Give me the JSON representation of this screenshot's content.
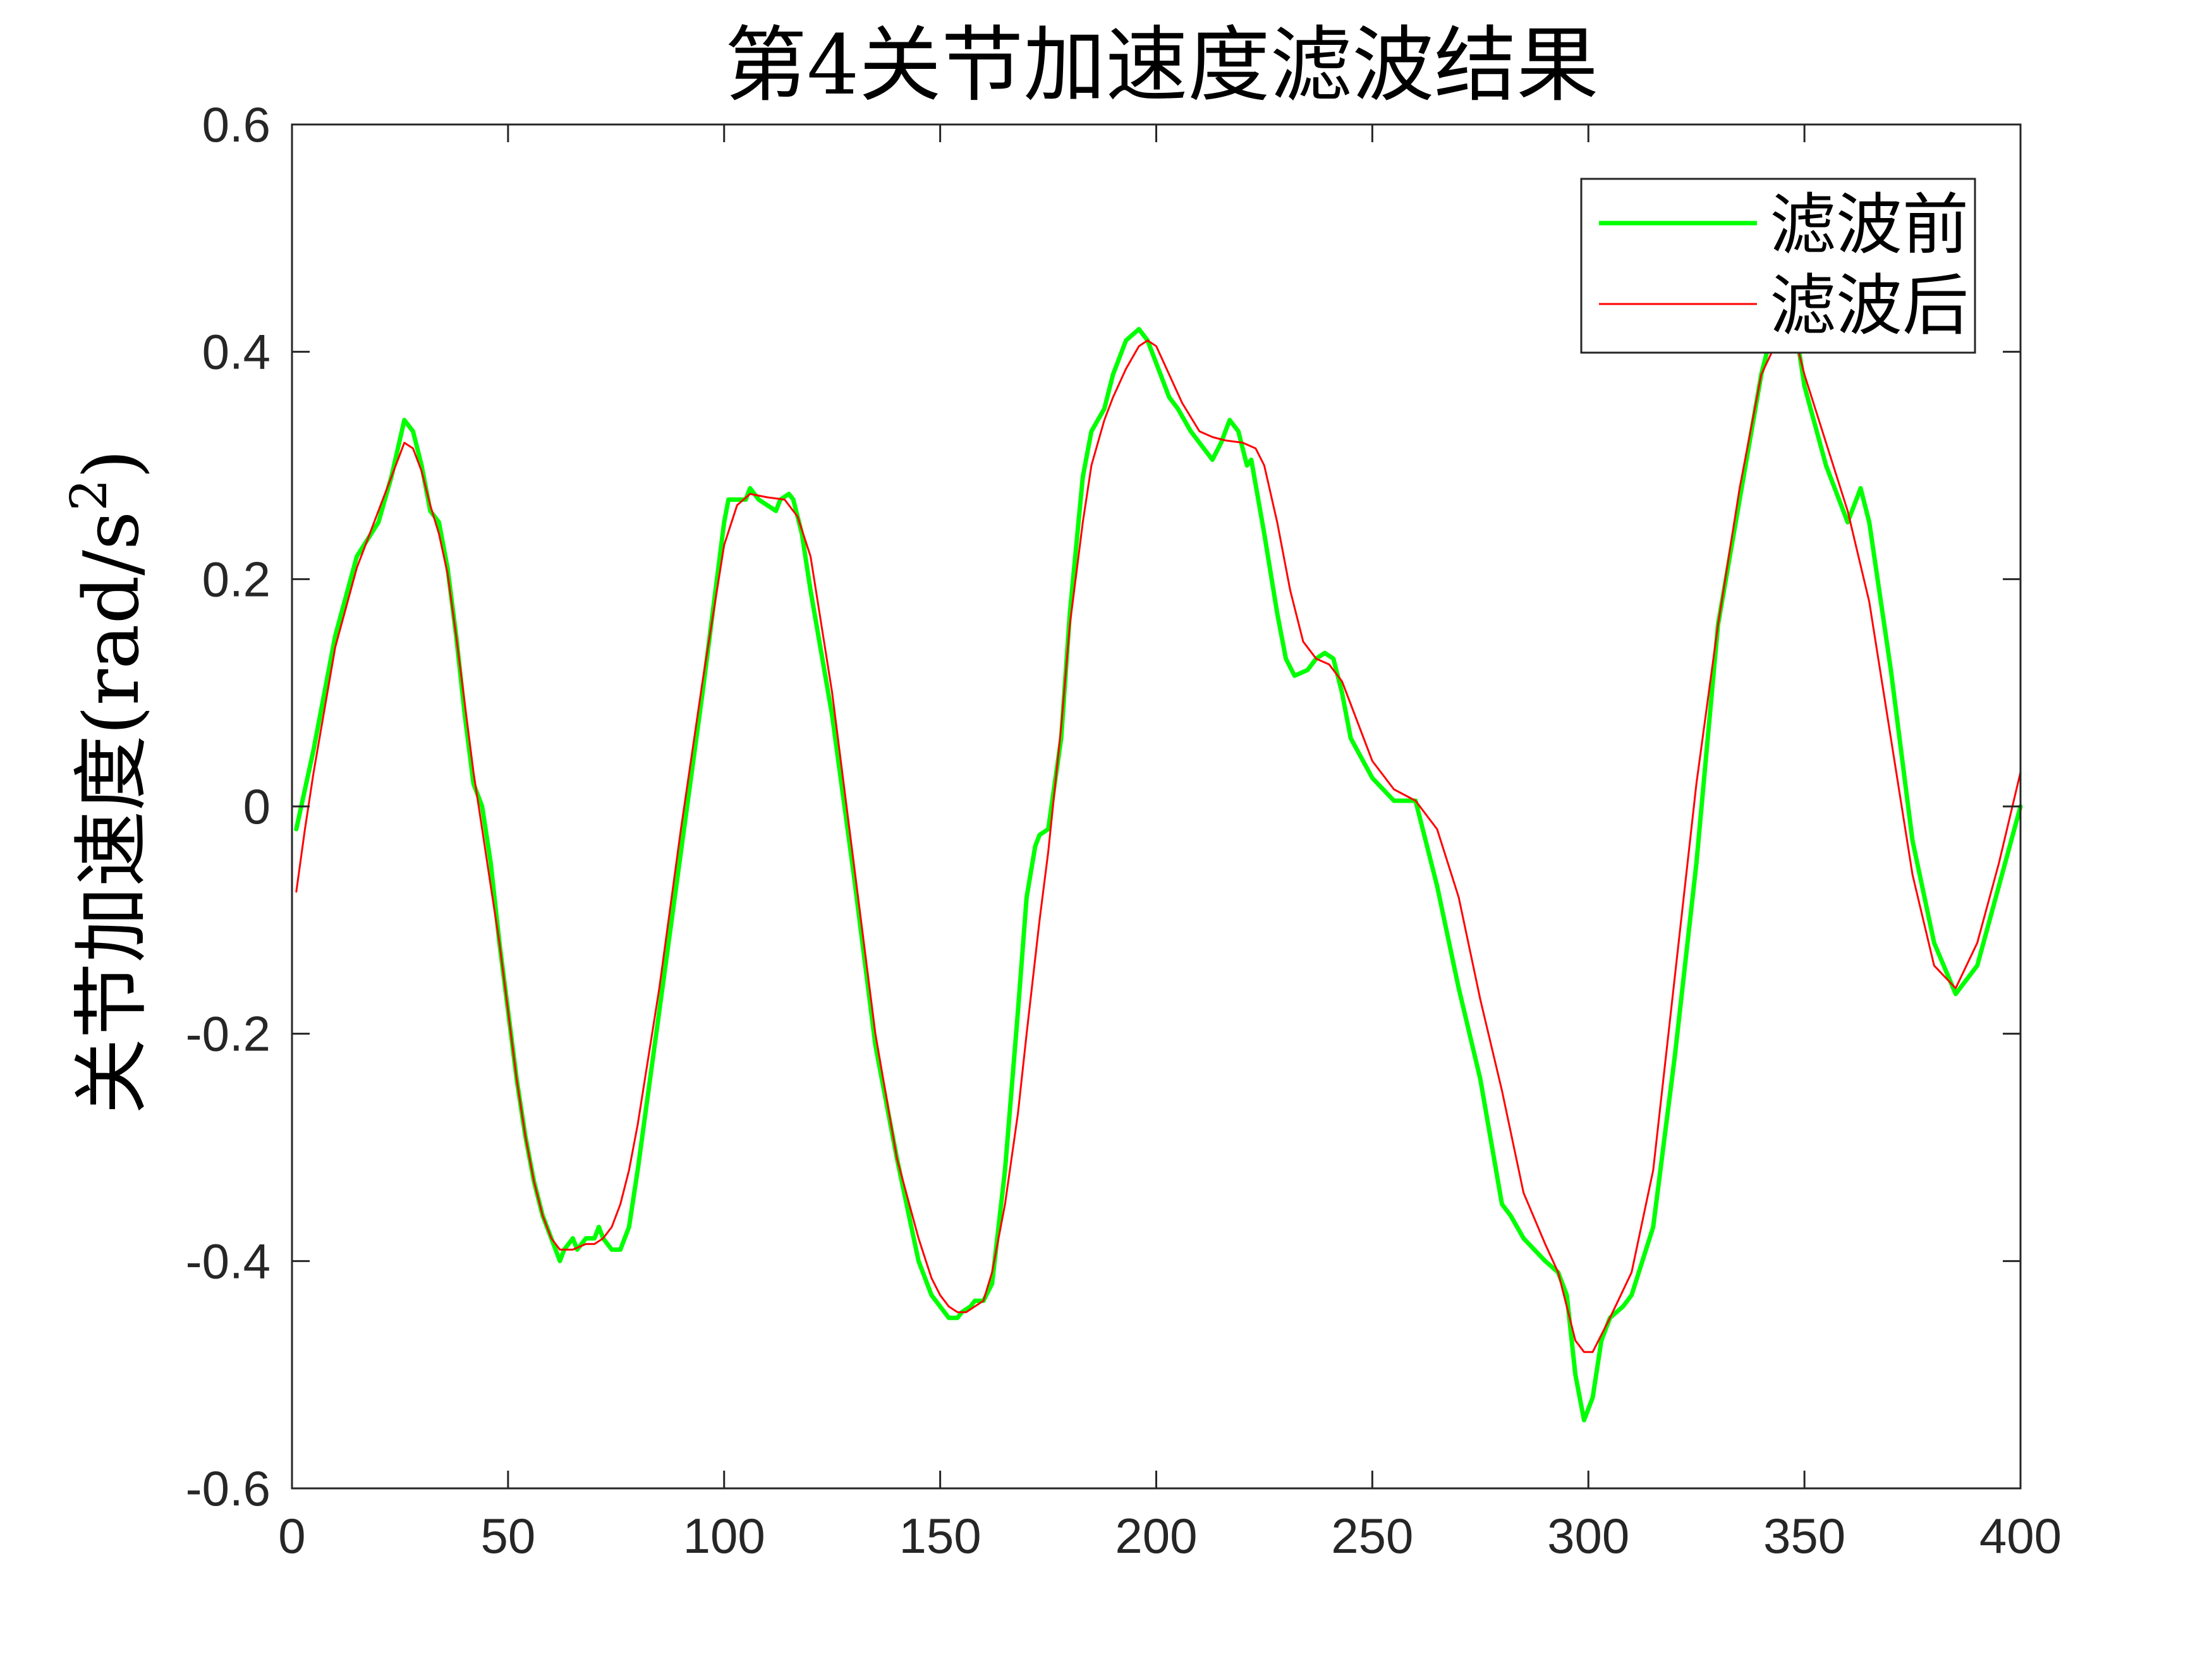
{
  "chart_data": {
    "type": "line",
    "title": "第4关节加速度滤波结果",
    "xlabel": "",
    "ylabel": "关节加速度",
    "ylabel_unit": "(rad/s",
    "ylabel_unit_sup": "2",
    "ylabel_unit_close": ")",
    "xlim": [
      0,
      400
    ],
    "ylim": [
      -0.6,
      0.6
    ],
    "xticks": [
      0,
      50,
      100,
      150,
      200,
      250,
      300,
      350,
      400
    ],
    "yticks": [
      -0.6,
      -0.4,
      -0.2,
      0,
      0.2,
      0.4,
      0.6
    ],
    "xtick_labels": [
      "0",
      "50",
      "100",
      "150",
      "200",
      "250",
      "300",
      "350",
      "400"
    ],
    "ytick_labels": [
      "-0.6",
      "-0.4",
      "-0.2",
      "0",
      "0.2",
      "0.4",
      "0.6"
    ],
    "grid": false,
    "legend_position": "top-right",
    "series": [
      {
        "name": "滤波前",
        "color": "#00ff00",
        "x": [
          1,
          5,
          10,
          15,
          20,
          23,
          26,
          28,
          30,
          32,
          34,
          36,
          38,
          40,
          42,
          44,
          46,
          48,
          50,
          52,
          54,
          56,
          58,
          60,
          62,
          63,
          65,
          66,
          68,
          70,
          71,
          72,
          74,
          76,
          78,
          80,
          85,
          90,
          95,
          100,
          101,
          103,
          105,
          106,
          108,
          110,
          112,
          113,
          115,
          116,
          118,
          120,
          125,
          130,
          135,
          140,
          145,
          148,
          150,
          152,
          154,
          155,
          157,
          158,
          160,
          162,
          165,
          168,
          170,
          172,
          173,
          175,
          178,
          180,
          183,
          185,
          188,
          190,
          193,
          196,
          198,
          200,
          203,
          205,
          208,
          210,
          213,
          215,
          217,
          219,
          221,
          222,
          225,
          228,
          230,
          232,
          235,
          237,
          239,
          241,
          243,
          245,
          250,
          255,
          260,
          265,
          270,
          275,
          280,
          282,
          285,
          290,
          293,
          295,
          297,
          299,
          301,
          303,
          305,
          308,
          310,
          315,
          320,
          325,
          330,
          335,
          340,
          342,
          345,
          348,
          350,
          355,
          360,
          362,
          363,
          365,
          370,
          375,
          380,
          385,
          390,
          395,
          400
        ],
        "y": [
          -0.02,
          0.05,
          0.15,
          0.22,
          0.25,
          0.29,
          0.34,
          0.33,
          0.3,
          0.26,
          0.25,
          0.21,
          0.15,
          0.08,
          0.02,
          0.0,
          -0.05,
          -0.12,
          -0.18,
          -0.24,
          -0.29,
          -0.33,
          -0.36,
          -0.38,
          -0.4,
          -0.39,
          -0.38,
          -0.39,
          -0.38,
          -0.38,
          -0.37,
          -0.38,
          -0.39,
          -0.39,
          -0.37,
          -0.32,
          -0.18,
          -0.04,
          0.1,
          0.25,
          0.27,
          0.27,
          0.27,
          0.28,
          0.27,
          0.265,
          0.26,
          0.27,
          0.275,
          0.27,
          0.24,
          0.19,
          0.08,
          -0.06,
          -0.21,
          -0.31,
          -0.4,
          -0.43,
          -0.44,
          -0.45,
          -0.45,
          -0.445,
          -0.44,
          -0.435,
          -0.435,
          -0.42,
          -0.32,
          -0.18,
          -0.08,
          -0.035,
          -0.025,
          -0.02,
          0.06,
          0.17,
          0.29,
          0.33,
          0.35,
          0.38,
          0.41,
          0.42,
          0.41,
          0.39,
          0.36,
          0.35,
          0.33,
          0.32,
          0.305,
          0.32,
          0.34,
          0.33,
          0.3,
          0.305,
          0.24,
          0.17,
          0.13,
          0.115,
          0.12,
          0.13,
          0.135,
          0.13,
          0.1,
          0.06,
          0.025,
          0.005,
          0.005,
          -0.07,
          -0.16,
          -0.24,
          -0.35,
          -0.36,
          -0.38,
          -0.4,
          -0.41,
          -0.43,
          -0.5,
          -0.54,
          -0.52,
          -0.47,
          -0.45,
          -0.44,
          -0.43,
          -0.37,
          -0.22,
          -0.05,
          0.16,
          0.27,
          0.38,
          0.41,
          0.44,
          0.42,
          0.37,
          0.3,
          0.25,
          0.27,
          0.28,
          0.25,
          0.12,
          -0.03,
          -0.12,
          -0.165,
          -0.14,
          -0.07,
          0.0
        ]
      },
      {
        "name": "滤波后",
        "color": "#ff0000",
        "x": [
          1,
          3,
          5,
          10,
          15,
          20,
          23,
          26,
          28,
          30,
          32,
          34,
          36,
          38,
          40,
          42,
          44,
          46,
          48,
          50,
          52,
          54,
          56,
          58,
          60,
          62,
          65,
          68,
          70,
          72,
          74,
          76,
          78,
          80,
          85,
          90,
          95,
          100,
          103,
          106,
          110,
          114,
          117,
          120,
          125,
          130,
          135,
          140,
          145,
          148,
          150,
          152,
          154,
          156,
          158,
          160,
          162,
          165,
          168,
          170,
          173,
          175,
          178,
          180,
          183,
          185,
          188,
          190,
          193,
          196,
          198,
          200,
          203,
          206,
          210,
          213,
          216,
          220,
          223,
          225,
          228,
          231,
          234,
          237,
          240,
          243,
          245,
          250,
          255,
          260,
          265,
          270,
          275,
          280,
          285,
          290,
          293,
          295,
          297,
          299,
          301,
          305,
          310,
          315,
          320,
          325,
          330,
          335,
          340,
          345,
          348,
          350,
          355,
          360,
          365,
          370,
          375,
          380,
          385,
          390,
          395,
          400
        ],
        "y": [
          -0.075,
          -0.02,
          0.03,
          0.14,
          0.21,
          0.26,
          0.29,
          0.32,
          0.315,
          0.295,
          0.265,
          0.24,
          0.205,
          0.15,
          0.09,
          0.03,
          -0.02,
          -0.07,
          -0.12,
          -0.18,
          -0.24,
          -0.29,
          -0.33,
          -0.36,
          -0.38,
          -0.39,
          -0.39,
          -0.385,
          -0.385,
          -0.38,
          -0.37,
          -0.35,
          -0.32,
          -0.28,
          -0.16,
          -0.02,
          0.11,
          0.23,
          0.265,
          0.275,
          0.272,
          0.27,
          0.255,
          0.22,
          0.1,
          -0.05,
          -0.2,
          -0.31,
          -0.38,
          -0.415,
          -0.43,
          -0.44,
          -0.445,
          -0.445,
          -0.44,
          -0.435,
          -0.41,
          -0.35,
          -0.27,
          -0.2,
          -0.1,
          -0.04,
          0.07,
          0.16,
          0.25,
          0.3,
          0.34,
          0.36,
          0.385,
          0.405,
          0.41,
          0.405,
          0.38,
          0.355,
          0.33,
          0.325,
          0.322,
          0.32,
          0.315,
          0.3,
          0.25,
          0.19,
          0.145,
          0.13,
          0.125,
          0.11,
          0.09,
          0.04,
          0.015,
          0.005,
          -0.02,
          -0.08,
          -0.17,
          -0.25,
          -0.34,
          -0.385,
          -0.41,
          -0.44,
          -0.47,
          -0.48,
          -0.48,
          -0.45,
          -0.41,
          -0.32,
          -0.15,
          0.02,
          0.16,
          0.28,
          0.38,
          0.42,
          0.41,
          0.38,
          0.32,
          0.26,
          0.18,
          0.06,
          -0.06,
          -0.14,
          -0.16,
          -0.12,
          -0.05,
          0.03
        ]
      }
    ]
  }
}
